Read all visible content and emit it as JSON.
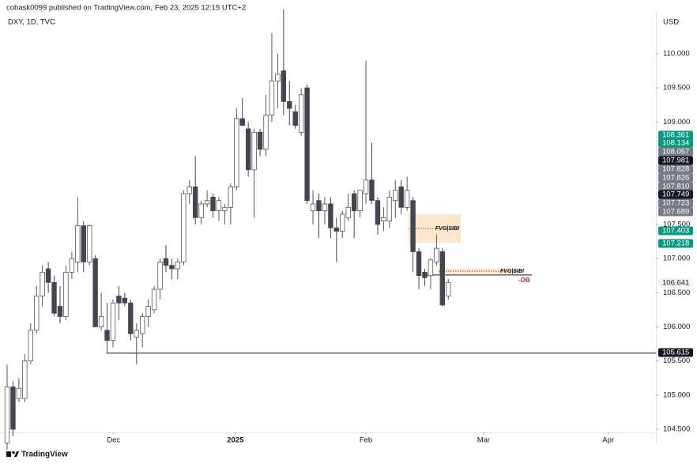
{
  "header": {
    "publisher": "cobask0099 published on TradingView.com, Feb 23, 2025 12:15 UTC+2",
    "brand": "TradingView"
  },
  "chart_data": {
    "type": "candlestick",
    "symbol": "DXY, 1D, TVC",
    "currency": "USD",
    "categories": [
      null,
      null,
      null,
      null,
      null,
      null,
      null,
      null,
      null,
      null,
      null,
      null,
      null,
      null,
      null,
      null,
      null,
      null,
      null,
      null,
      null,
      null,
      null,
      null,
      null,
      null,
      null,
      null,
      null,
      null,
      null,
      null,
      null,
      null,
      null,
      null,
      null,
      null,
      null,
      null,
      null,
      null,
      null,
      null,
      null,
      null,
      null,
      null,
      null,
      null,
      null,
      null,
      null,
      null,
      null,
      null,
      null,
      null,
      null,
      null,
      null,
      null,
      null,
      null,
      null,
      null,
      null,
      null,
      null,
      null,
      null,
      null,
      null,
      null,
      null,
      null
    ],
    "open": [
      104.3,
      105.12,
      104.95,
      104.95,
      105.5,
      105.95,
      106.45,
      106.85,
      106.65,
      106.3,
      106.15,
      106.8,
      106.95,
      107.48,
      106.95,
      107.0,
      106.0,
      105.95,
      105.8,
      106.45,
      106.42,
      106.35,
      105.85,
      105.9,
      106.15,
      106.25,
      106.55,
      107.0,
      106.9,
      106.85,
      106.95,
      107.95,
      108.05,
      107.6,
      107.8,
      107.9,
      107.7,
      107.7,
      107.75,
      108.05,
      109.05,
      108.9,
      108.3,
      108.85,
      108.6,
      109.1,
      109.6,
      109.75,
      109.3,
      109.15,
      108.85,
      109.5,
      107.7,
      107.85,
      107.7,
      107.8,
      107.45,
      107.4,
      107.6,
      107.95,
      107.7,
      107.95,
      108.15,
      107.85,
      107.55,
      107.55,
      107.85,
      108.05,
      107.75,
      107.85,
      107.1,
      106.8,
      106.75,
      106.95,
      107.1,
      106.45
    ],
    "high": [
      105.45,
      105.2,
      105.25,
      105.6,
      106.05,
      106.6,
      106.9,
      106.95,
      106.75,
      106.6,
      106.9,
      107.1,
      107.9,
      107.55,
      107.5,
      107.05,
      106.5,
      106.35,
      106.4,
      106.6,
      106.5,
      106.4,
      106.05,
      106.2,
      106.4,
      106.6,
      107.0,
      107.2,
      107.0,
      107.0,
      108.0,
      108.15,
      108.5,
      107.85,
      108.0,
      107.95,
      107.9,
      107.8,
      108.1,
      109.2,
      109.35,
      109.0,
      108.9,
      108.9,
      109.4,
      110.3,
      110.0,
      110.65,
      109.6,
      109.25,
      109.5,
      109.55,
      108.0,
      107.95,
      107.9,
      107.9,
      107.6,
      107.7,
      107.95,
      108.0,
      108.0,
      109.9,
      108.7,
      107.9,
      107.75,
      108.0,
      108.15,
      108.15,
      108.2,
      107.9,
      107.15,
      106.85,
      107.0,
      107.35,
      107.15,
      106.7
    ],
    "low": [
      104.2,
      104.4,
      104.9,
      104.9,
      105.45,
      105.9,
      106.3,
      106.5,
      106.15,
      106.05,
      106.1,
      106.7,
      106.8,
      106.8,
      106.9,
      106.0,
      105.95,
      105.615,
      105.7,
      106.1,
      106.3,
      105.8,
      105.45,
      105.7,
      106.0,
      106.2,
      106.4,
      106.8,
      106.7,
      106.7,
      106.9,
      107.8,
      107.5,
      107.5,
      107.75,
      107.6,
      107.55,
      107.5,
      107.5,
      108.0,
      108.95,
      108.2,
      107.6,
      108.5,
      108.5,
      109.0,
      109.2,
      109.1,
      108.95,
      108.9,
      108.8,
      107.8,
      107.5,
      107.3,
      107.5,
      107.3,
      106.95,
      107.3,
      107.55,
      107.3,
      107.6,
      107.8,
      107.8,
      107.35,
      107.4,
      107.45,
      107.6,
      107.65,
      107.7,
      106.8,
      106.55,
      106.6,
      106.55,
      106.9,
      106.3,
      106.4
    ],
    "close": [
      105.12,
      104.5,
      105.1,
      105.5,
      105.95,
      106.45,
      106.8,
      106.65,
      106.2,
      106.15,
      106.8,
      107.0,
      107.48,
      106.95,
      107.48,
      106.0,
      106.15,
      105.8,
      106.35,
      106.35,
      106.35,
      105.9,
      105.95,
      106.15,
      106.3,
      106.55,
      106.95,
      106.9,
      106.85,
      106.95,
      107.95,
      108.05,
      107.6,
      107.8,
      107.85,
      107.7,
      107.85,
      107.75,
      108.05,
      109.05,
      108.95,
      108.3,
      108.85,
      108.6,
      109.1,
      109.6,
      109.7,
      109.3,
      109.2,
      108.95,
      109.4,
      107.85,
      107.8,
      107.7,
      107.8,
      107.45,
      107.4,
      107.65,
      107.75,
      107.7,
      108.0,
      108.15,
      107.85,
      107.5,
      107.6,
      107.9,
      108.0,
      107.75,
      108.0,
      107.1,
      106.75,
      106.72,
      106.98,
      107.15,
      106.32,
      106.65
    ],
    "up_color": "#ffffff",
    "down_color": "#434651",
    "xlim": [
      -1.21,
      110.3
    ],
    "xticks": [
      {
        "value": 18.1,
        "label": "Dec"
      },
      {
        "value": 38.8,
        "label": "2025"
      },
      {
        "value": 61,
        "label": "Feb"
      },
      {
        "value": 81,
        "label": "Mar"
      },
      {
        "value": 102.2,
        "label": "Apr"
      }
    ],
    "ylim": [
      104.454,
      110.625
    ],
    "yticks": [
      {
        "value": 110,
        "label": "110.000"
      },
      {
        "value": 109.5,
        "label": "109.500"
      },
      {
        "value": 109,
        "label": "109.000"
      },
      {
        "value": 107.5,
        "label": "107.500"
      },
      {
        "value": 107,
        "label": "107.000"
      },
      {
        "value": 106.5,
        "label": "106.500"
      },
      {
        "value": 106,
        "label": "106.000"
      },
      {
        "value": 105.5,
        "label": "105.500"
      },
      {
        "value": 105,
        "label": "105.000"
      },
      {
        "value": 104.5,
        "label": "104.500"
      }
    ],
    "price_labels": [
      {
        "value": 108.361,
        "label": "108.361",
        "color": "#089981"
      },
      {
        "value": 108.134,
        "label": "108.134",
        "color": "#089981"
      },
      {
        "value": 108.057,
        "label": "108.057",
        "color": "#787b86"
      },
      {
        "value": 107.981,
        "label": "107.981",
        "color": "#131722"
      },
      {
        "value": 107.828,
        "label": "107.828",
        "color": "#787b86"
      },
      {
        "value": 107.826,
        "label": "107.826",
        "color": "#787b86"
      },
      {
        "value": 107.81,
        "label": "107.810",
        "color": "#787b86"
      },
      {
        "value": 107.749,
        "label": "107.749",
        "color": "#131722"
      },
      {
        "value": 107.723,
        "label": "107.723",
        "color": "#787b86"
      },
      {
        "value": 107.689,
        "label": "107.689",
        "color": "#787b86"
      },
      {
        "value": 107.403,
        "label": "107.403",
        "color": "#089981"
      },
      {
        "value": 107.218,
        "label": "107.218",
        "color": "#089981"
      },
      {
        "value": 106.641,
        "label": "106.641",
        "color": "#f0f3fa"
      },
      {
        "value": 105.615,
        "label": "105.615",
        "color": "#131722"
      }
    ],
    "zones": [
      {
        "label": "FVG|SIBI",
        "low": 107.23,
        "high": 107.65,
        "mid": 107.44,
        "color": "#fbe3c4"
      },
      {
        "label": "FVG|SIBI",
        "low": 106.78,
        "high": 106.85,
        "mid": 106.815,
        "color": "#fbe3c4"
      }
    ],
    "order_block": {
      "label": "-OB",
      "value": 106.76,
      "color": "#b22833"
    },
    "level": {
      "value": 105.615
    }
  }
}
